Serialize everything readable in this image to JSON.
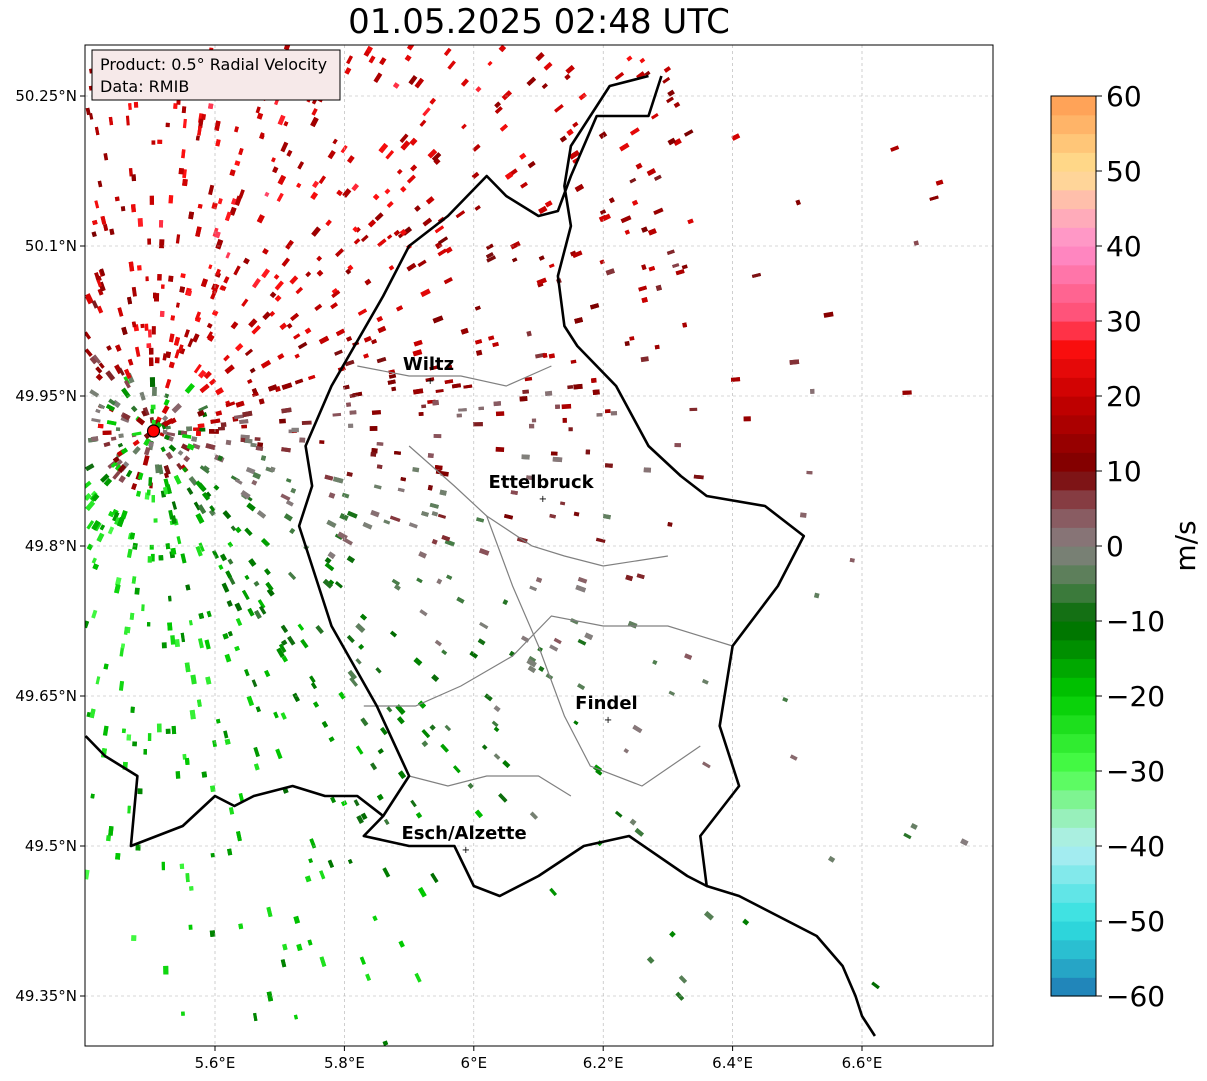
{
  "title": "01.05.2025 02:48 UTC",
  "info": {
    "product": "Product: 0.5° Radial Velocity",
    "source": "Data: RMIB"
  },
  "map": {
    "lon_range": [
      5.4,
      6.8
    ],
    "lat_range": [
      49.3,
      50.3
    ],
    "lon_ticks": [
      5.6,
      5.8,
      6.0,
      6.2,
      6.4,
      6.6
    ],
    "lon_tick_labels": [
      "5.6°E",
      "5.8°E",
      "6°E",
      "6.2°E",
      "6.4°E",
      "6.6°E"
    ],
    "lat_ticks": [
      50.25,
      50.1,
      49.95,
      49.8,
      49.65,
      49.5,
      49.35
    ],
    "lat_tick_labels": [
      "50.25°N",
      "50.1°N",
      "49.95°N",
      "49.8°N",
      "49.65°N",
      "49.5°N",
      "49.35°N"
    ],
    "grid": true,
    "radar_site": {
      "lon": 5.505,
      "lat": 49.915
    },
    "cities": [
      {
        "name": "Wiltz",
        "lon": 5.93,
        "lat": 49.966
      },
      {
        "name": "Ettelbruck",
        "lon": 6.104,
        "lat": 49.848
      },
      {
        "name": "Findel",
        "lon": 6.205,
        "lat": 49.627
      },
      {
        "name": "Esch/Alzette",
        "lon": 5.985,
        "lat": 49.497
      }
    ],
    "borders": {
      "luxembourg": [
        [
          6.29,
          50.27
        ],
        [
          6.27,
          50.23
        ],
        [
          6.19,
          50.23
        ],
        [
          6.15,
          50.17
        ],
        [
          6.13,
          50.135
        ],
        [
          6.1,
          50.13
        ],
        [
          6.05,
          50.15
        ],
        [
          6.02,
          50.17
        ],
        [
          5.96,
          50.13
        ],
        [
          5.9,
          50.1
        ],
        [
          5.86,
          50.05
        ],
        [
          5.78,
          49.96
        ],
        [
          5.74,
          49.9
        ],
        [
          5.75,
          49.86
        ],
        [
          5.73,
          49.82
        ],
        [
          5.78,
          49.72
        ],
        [
          5.85,
          49.64
        ],
        [
          5.9,
          49.57
        ],
        [
          5.86,
          49.53
        ],
        [
          5.83,
          49.51
        ],
        [
          5.9,
          49.5
        ],
        [
          5.97,
          49.5
        ],
        [
          6.0,
          49.46
        ],
        [
          6.04,
          49.45
        ],
        [
          6.1,
          49.47
        ],
        [
          6.17,
          49.5
        ],
        [
          6.24,
          49.51
        ],
        [
          6.33,
          49.47
        ],
        [
          6.36,
          49.46
        ],
        [
          6.35,
          49.51
        ],
        [
          6.41,
          49.56
        ],
        [
          6.38,
          49.62
        ],
        [
          6.4,
          49.7
        ],
        [
          6.47,
          49.76
        ],
        [
          6.51,
          49.81
        ],
        [
          6.45,
          49.84
        ],
        [
          6.36,
          49.85
        ],
        [
          6.32,
          49.87
        ],
        [
          6.27,
          49.9
        ],
        [
          6.22,
          49.96
        ],
        [
          6.16,
          50.0
        ],
        [
          6.14,
          50.02
        ],
        [
          6.13,
          50.07
        ],
        [
          6.15,
          50.12
        ],
        [
          6.14,
          50.16
        ],
        [
          6.15,
          50.2
        ],
        [
          6.18,
          50.23
        ],
        [
          6.21,
          50.26
        ],
        [
          6.27,
          50.27
        ]
      ],
      "belgium_france": [
        [
          5.4,
          49.61
        ],
        [
          5.43,
          49.59
        ],
        [
          5.48,
          49.57
        ],
        [
          5.47,
          49.5
        ],
        [
          5.55,
          49.52
        ],
        [
          5.6,
          49.55
        ],
        [
          5.63,
          49.54
        ],
        [
          5.66,
          49.55
        ],
        [
          5.72,
          49.56
        ],
        [
          5.77,
          49.55
        ],
        [
          5.82,
          49.55
        ],
        [
          5.86,
          49.53
        ]
      ],
      "germany_east": [
        [
          6.36,
          49.46
        ],
        [
          6.41,
          49.45
        ],
        [
          6.47,
          49.43
        ],
        [
          6.53,
          49.41
        ],
        [
          6.57,
          49.38
        ],
        [
          6.59,
          49.35
        ],
        [
          6.6,
          49.33
        ],
        [
          6.62,
          49.31
        ]
      ],
      "admin_lines": [
        [
          [
            5.82,
            49.98
          ],
          [
            5.9,
            49.97
          ],
          [
            5.98,
            49.97
          ],
          [
            6.05,
            49.96
          ],
          [
            6.12,
            49.98
          ]
        ],
        [
          [
            5.9,
            49.9
          ],
          [
            5.97,
            49.86
          ],
          [
            6.02,
            49.83
          ],
          [
            6.09,
            49.8
          ],
          [
            6.14,
            49.79
          ],
          [
            6.2,
            49.78
          ],
          [
            6.3,
            49.79
          ]
        ],
        [
          [
            6.02,
            49.83
          ],
          [
            6.06,
            49.76
          ],
          [
            6.1,
            49.7
          ],
          [
            6.14,
            49.63
          ],
          [
            6.18,
            49.58
          ],
          [
            6.26,
            49.56
          ],
          [
            6.35,
            49.6
          ]
        ],
        [
          [
            5.83,
            49.64
          ],
          [
            5.91,
            49.64
          ],
          [
            5.98,
            49.66
          ],
          [
            6.06,
            49.69
          ],
          [
            6.12,
            49.73
          ],
          [
            6.2,
            49.72
          ],
          [
            6.3,
            49.72
          ],
          [
            6.4,
            49.7
          ]
        ],
        [
          [
            5.9,
            49.57
          ],
          [
            5.96,
            49.56
          ],
          [
            6.02,
            49.57
          ],
          [
            6.1,
            49.57
          ],
          [
            6.15,
            49.55
          ]
        ]
      ]
    }
  },
  "colorbar": {
    "label": "m/s",
    "min": -60,
    "max": 60,
    "ticks": [
      60,
      50,
      40,
      30,
      20,
      10,
      0,
      -10,
      -20,
      -30,
      -40,
      -50,
      -60
    ],
    "tick_labels": [
      "60",
      "50",
      "40",
      "30",
      "20",
      "10",
      "0",
      "−10",
      "−20",
      "−30",
      "−40",
      "−50",
      "−60"
    ],
    "stops": [
      {
        "v": -60,
        "color": "#1f77b4"
      },
      {
        "v": -55,
        "color": "#28b4cc"
      },
      {
        "v": -50,
        "color": "#2fe0e0"
      },
      {
        "v": -40,
        "color": "#b3eef2"
      },
      {
        "v": -35,
        "color": "#8ff0a8"
      },
      {
        "v": -30,
        "color": "#4cff4c"
      },
      {
        "v": -20,
        "color": "#00cc00"
      },
      {
        "v": -10,
        "color": "#006b00"
      },
      {
        "v": -5,
        "color": "#4f7f4f"
      },
      {
        "v": 0,
        "color": "#868080"
      },
      {
        "v": 5,
        "color": "#8a5058"
      },
      {
        "v": 10,
        "color": "#7a0000"
      },
      {
        "v": 20,
        "color": "#c80000"
      },
      {
        "v": 27,
        "color": "#ff1010"
      },
      {
        "v": 30,
        "color": "#ff4a6e"
      },
      {
        "v": 40,
        "color": "#ff8fcc"
      },
      {
        "v": 45,
        "color": "#ffb4b4"
      },
      {
        "v": 50,
        "color": "#ffe090"
      },
      {
        "v": 60,
        "color": "#ff9a50"
      }
    ]
  }
}
